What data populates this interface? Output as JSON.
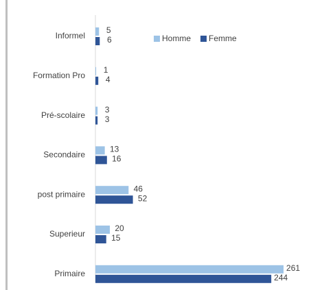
{
  "chart_data": {
    "type": "hbar",
    "categories": [
      "Informel",
      "Formation Pro",
      "Pré-scolaire",
      "Secondaire",
      "post primaire",
      "Superieur",
      "Primaire"
    ],
    "series": [
      {
        "name": "Homme",
        "color": "#9dc3e6",
        "values": [
          5,
          1,
          3,
          13,
          46,
          20,
          261
        ]
      },
      {
        "name": "Femme",
        "color": "#2f5597",
        "values": [
          6,
          4,
          3,
          16,
          52,
          15,
          244
        ]
      }
    ],
    "legend": "top-right"
  }
}
